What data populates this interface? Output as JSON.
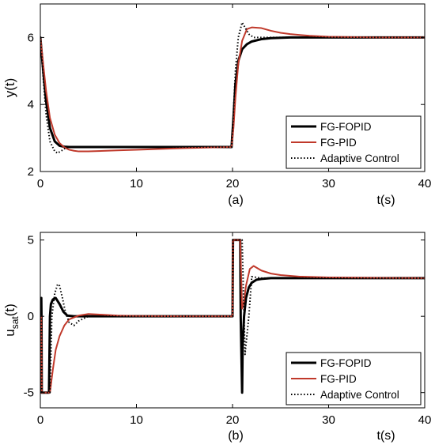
{
  "chart_data": [
    {
      "type": "line",
      "panel_label": "(a)",
      "xlabel": "t(s)",
      "ylabel": "y(t)",
      "xlim": [
        0,
        40
      ],
      "ylim": [
        2,
        7
      ],
      "xticks": [
        0,
        10,
        20,
        30,
        40
      ],
      "yticks": [
        2,
        4,
        6
      ],
      "grid": false,
      "legend_position": "bottom-right",
      "series": [
        {
          "name": "FG-FOPID",
          "color": "#000000",
          "style": "solid-thick",
          "x": [
            0,
            0.3,
            0.6,
            1.0,
            1.5,
            2.0,
            2.5,
            3.0,
            4.0,
            5.0,
            10,
            15,
            19.9,
            20.1,
            20.3,
            20.6,
            21.0,
            21.5,
            22,
            23,
            24,
            26,
            28,
            30,
            35,
            40
          ],
          "y": [
            6.0,
            5.0,
            4.1,
            3.3,
            2.9,
            2.77,
            2.74,
            2.73,
            2.73,
            2.73,
            2.73,
            2.73,
            2.73,
            3.6,
            4.6,
            5.3,
            5.65,
            5.8,
            5.88,
            5.95,
            5.98,
            6.0,
            6.0,
            6.0,
            6.0,
            6.0
          ]
        },
        {
          "name": "FG-PID",
          "color": "#c0392b",
          "style": "solid",
          "x": [
            0,
            0.3,
            0.6,
            1.0,
            1.5,
            2.0,
            2.5,
            3.0,
            3.5,
            4.0,
            5.0,
            6.0,
            8.0,
            10,
            12,
            15,
            18,
            19.9,
            20.1,
            20.3,
            20.6,
            21.0,
            21.5,
            22,
            23,
            24,
            25,
            26,
            28,
            30,
            35,
            40
          ],
          "y": [
            6.0,
            5.2,
            4.4,
            3.6,
            3.1,
            2.85,
            2.72,
            2.65,
            2.62,
            2.6,
            2.6,
            2.61,
            2.63,
            2.65,
            2.67,
            2.7,
            2.72,
            2.73,
            3.3,
            4.2,
            5.2,
            5.9,
            6.25,
            6.3,
            6.28,
            6.2,
            6.14,
            6.1,
            6.05,
            6.02,
            6.0,
            6.0
          ]
        },
        {
          "name": "Adaptive Control",
          "color": "#000000",
          "style": "dotted",
          "x": [
            0,
            0.3,
            0.6,
            1.0,
            1.5,
            1.8,
            2.2,
            2.6,
            3.0,
            3.5,
            4.0,
            5.0,
            10,
            15,
            19.9,
            20.1,
            20.3,
            20.6,
            21.0,
            21.3,
            21.7,
            22.2,
            23,
            24,
            26,
            30,
            40
          ],
          "y": [
            6.0,
            4.8,
            3.7,
            2.9,
            2.6,
            2.55,
            2.62,
            2.7,
            2.74,
            2.74,
            2.73,
            2.73,
            2.73,
            2.73,
            2.73,
            3.8,
            5.0,
            6.0,
            6.45,
            6.3,
            6.1,
            6.0,
            6.0,
            6.0,
            6.0,
            6.0,
            6.0
          ]
        }
      ]
    },
    {
      "type": "line",
      "panel_label": "(b)",
      "xlabel": "t(s)",
      "ylabel_main": "u",
      "ylabel_sub": "sat",
      "ylabel_tail": "(t)",
      "xlim": [
        0,
        40
      ],
      "ylim": [
        -6,
        5.5
      ],
      "xticks": [
        0,
        10,
        20,
        30,
        40
      ],
      "yticks": [
        -5,
        0,
        5
      ],
      "grid": false,
      "legend_position": "bottom-right",
      "series": [
        {
          "name": "FG-FOPID",
          "color": "#000000",
          "style": "solid-thick",
          "x": [
            0,
            0.05,
            0.1,
            0.12,
            0.15,
            0.5,
            0.9,
            1.0,
            1.1,
            1.3,
            1.6,
            2.0,
            2.4,
            2.8,
            3.5,
            5,
            10,
            15,
            19.9,
            20.0,
            20.05,
            20.5,
            20.8,
            20.85,
            21.0,
            21.05,
            21.2,
            21.4,
            21.7,
            22,
            22.5,
            23,
            24,
            26,
            30,
            40
          ],
          "y": [
            0,
            0,
            1.2,
            0,
            -5,
            -5,
            -5,
            0,
            0.8,
            1.1,
            1.2,
            0.8,
            0.3,
            0.05,
            0,
            0,
            0,
            0,
            0,
            0,
            5,
            5,
            5,
            0,
            -5,
            -2,
            0,
            1.2,
            1.9,
            2.2,
            2.4,
            2.45,
            2.5,
            2.5,
            2.5,
            2.5
          ]
        },
        {
          "name": "FG-PID",
          "color": "#c0392b",
          "style": "solid",
          "x": [
            0,
            0.1,
            0.15,
            0.5,
            1.0,
            1.3,
            1.6,
            2.0,
            2.5,
            3.0,
            4.0,
            5.0,
            6.0,
            8.0,
            10,
            15,
            19.9,
            20.0,
            20.05,
            20.5,
            20.8,
            21.0,
            21.2,
            21.4,
            21.8,
            22.2,
            23,
            24,
            25,
            27,
            30,
            40
          ],
          "y": [
            0,
            0,
            -5,
            -5,
            -5,
            -3.5,
            -2.2,
            -1.3,
            -0.6,
            -0.2,
            0.05,
            0.15,
            0.12,
            0.05,
            0.02,
            0,
            0,
            0,
            5,
            5,
            5,
            0.5,
            1.0,
            2.0,
            3.1,
            3.3,
            3.0,
            2.8,
            2.7,
            2.6,
            2.55,
            2.5
          ]
        },
        {
          "name": "Adaptive Control",
          "color": "#000000",
          "style": "dotted",
          "x": [
            0,
            0.1,
            0.15,
            0.5,
            1.0,
            1.2,
            1.5,
            1.8,
            2.0,
            2.3,
            2.6,
            3.0,
            3.5,
            4.0,
            5.0,
            10,
            15,
            19.9,
            20.0,
            20.05,
            20.5,
            21.0,
            21.3,
            21.7,
            22,
            23,
            25,
            30,
            40
          ],
          "y": [
            0,
            0,
            -5,
            -5,
            -5,
            0,
            1.5,
            2.1,
            2.0,
            1.2,
            0.3,
            -0.4,
            -0.6,
            -0.3,
            0,
            0,
            0,
            0,
            0,
            5,
            5,
            5,
            -2.5,
            0,
            2.6,
            2.5,
            2.5,
            2.5,
            2.5
          ]
        }
      ]
    }
  ]
}
